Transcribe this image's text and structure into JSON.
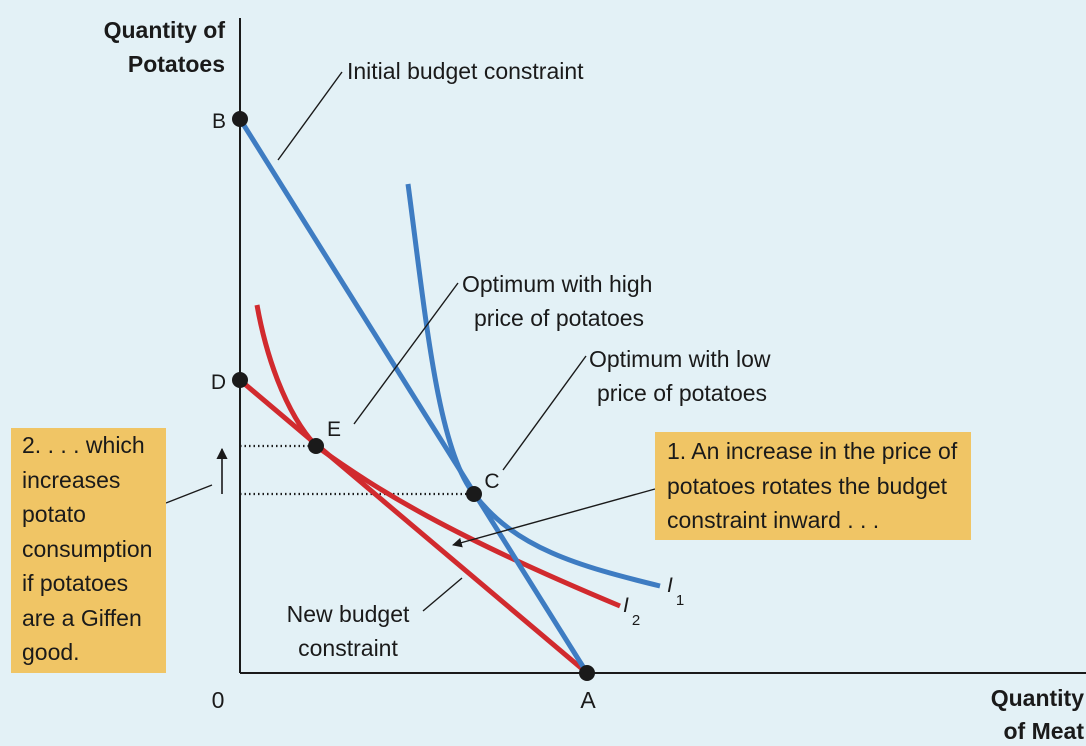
{
  "axes": {
    "y_title": [
      "Quantity of",
      "Potatoes"
    ],
    "x_title": [
      "Quantity",
      "of Meat"
    ],
    "origin": "0"
  },
  "points": {
    "A": "A",
    "B": "B",
    "C": "C",
    "D": "D",
    "E": "E"
  },
  "labels": {
    "initial_budget": "Initial budget constraint",
    "new_budget": [
      "New budget",
      "constraint"
    ],
    "optimum_high": [
      "Optimum with high",
      "price of potatoes"
    ],
    "optimum_low": [
      "Optimum with low",
      "price of potatoes"
    ],
    "i1": {
      "letter": "I",
      "sub": "1"
    },
    "i2": {
      "letter": "I",
      "sub": "2"
    }
  },
  "callouts": {
    "increase": [
      "1. An increase in the price of",
      "potatoes rotates the budget",
      "constraint inward . . ."
    ],
    "giffen": [
      "2. . . . which",
      "increases",
      "potato",
      "consumption",
      "if potatoes",
      "are a Giffen",
      "good."
    ]
  },
  "colors": {
    "background": "#e3f1f6",
    "initial_budget": "#3e7cc2",
    "new_budget": "#d12a2e",
    "callout_fill": "#f0c565"
  }
}
